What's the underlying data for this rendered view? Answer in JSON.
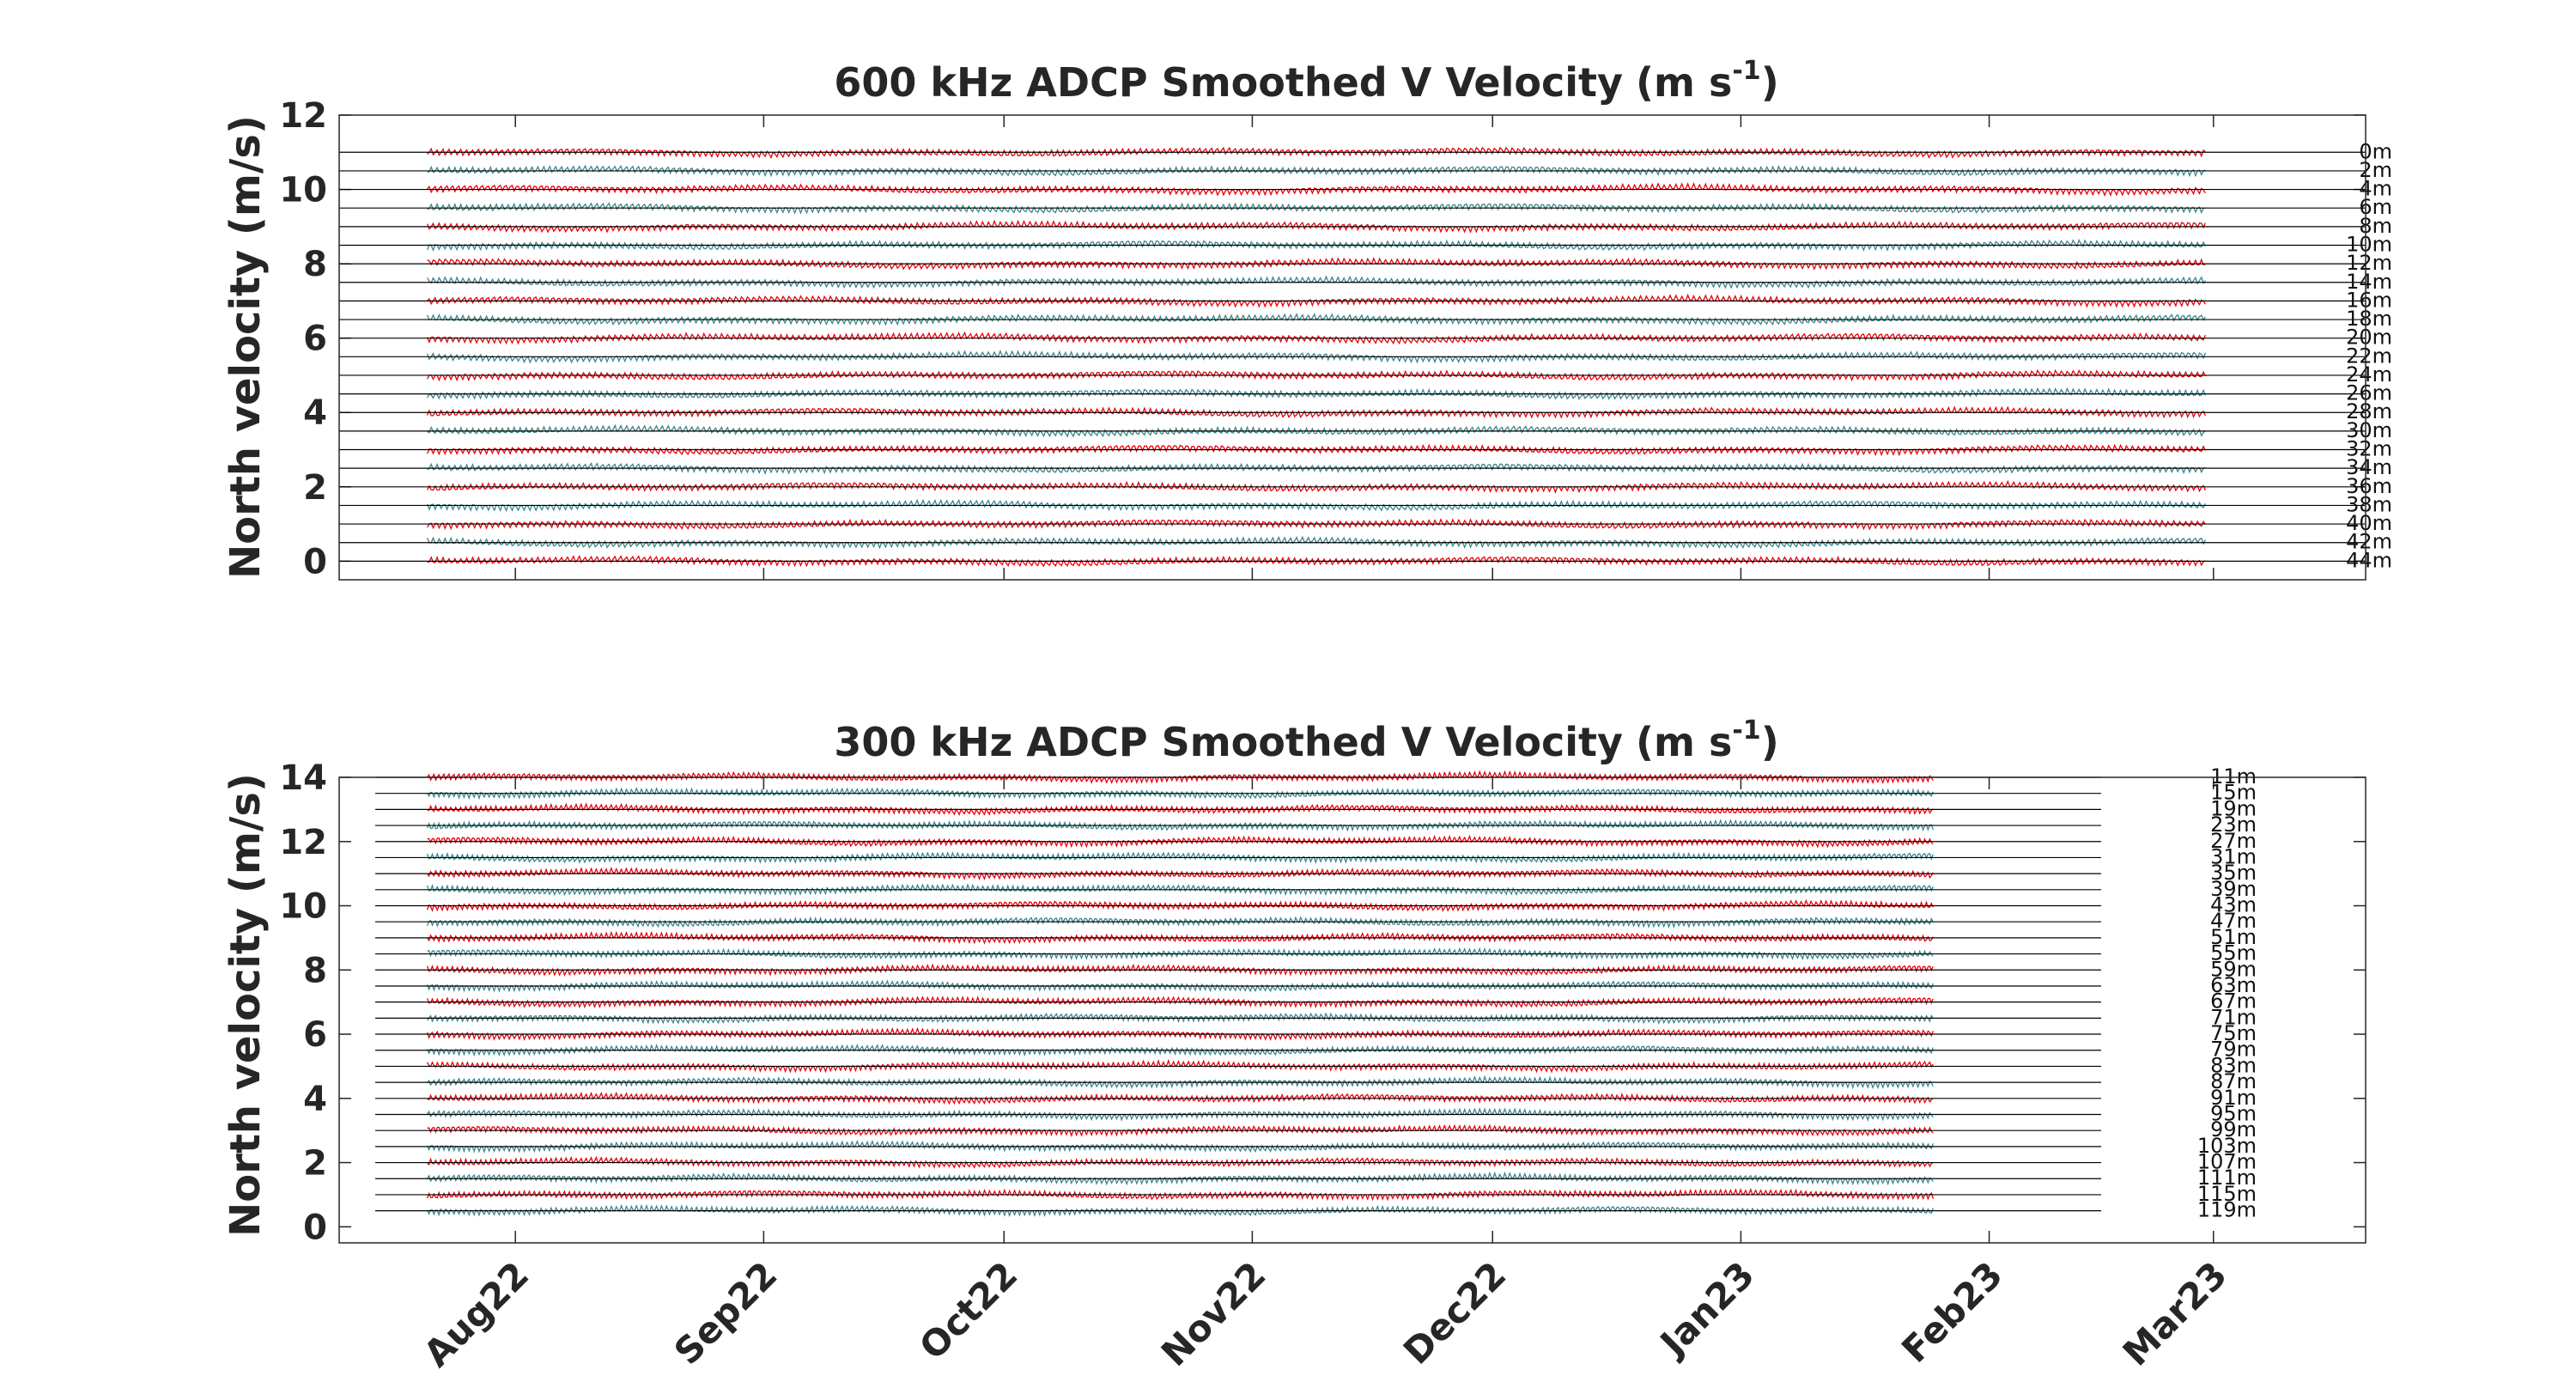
{
  "chart_data": [
    {
      "type": "line",
      "title": "600 kHz ADCP Smoothed V Velocity",
      "title_units": "(m s",
      "title_units_sup": "-1",
      "title_units_close": ")",
      "ylabel": "North velocity (m/s)",
      "ylim": [
        -0.5,
        12
      ],
      "yticks": [
        "0",
        "2",
        "4",
        "6",
        "8",
        "10",
        "12"
      ],
      "xlim": [
        "2022-07-10",
        "2023-03-20"
      ],
      "grid": false,
      "data_start": "2022-07-21",
      "data_end": "2023-02-28",
      "offset_step": 0.5,
      "series_colors": [
        "#e8000b",
        "#3b8686"
      ],
      "depth_labels": [
        "0m",
        "2m",
        "4m",
        "6m",
        "8m",
        "10m",
        "12m",
        "14m",
        "16m",
        "18m",
        "20m",
        "22m",
        "24m",
        "26m",
        "28m",
        "30m",
        "32m",
        "34m",
        "36m",
        "38m",
        "40m",
        "42m",
        "44m"
      ]
    },
    {
      "type": "line",
      "title": "300 kHz ADCP Smoothed V Velocity",
      "title_units": "(m s",
      "title_units_sup": "-1",
      "title_units_close": ")",
      "ylabel": "North velocity (m/s)",
      "ylim": [
        -0.5,
        14
      ],
      "yticks": [
        "0",
        "2",
        "4",
        "6",
        "8",
        "10",
        "12",
        "14"
      ],
      "xlim": [
        "2022-07-10",
        "2023-03-20"
      ],
      "xticks": [
        "Aug22",
        "Sep22",
        "Oct22",
        "Nov22",
        "Dec22",
        "Jan23",
        "Feb23",
        "Mar23"
      ],
      "xtick_dates": [
        "2022-08-01",
        "2022-09-01",
        "2022-10-01",
        "2022-11-01",
        "2022-12-01",
        "2023-01-01",
        "2023-02-01",
        "2023-03-01"
      ],
      "grid": false,
      "data_start": "2022-07-21",
      "data_end": "2023-01-25",
      "offset_step": 0.5,
      "series_colors": [
        "#e8000b",
        "#3b8686"
      ],
      "depth_labels": [
        "11m",
        "15m",
        "19m",
        "23m",
        "27m",
        "31m",
        "35m",
        "39m",
        "43m",
        "47m",
        "51m",
        "55m",
        "59m",
        "63m",
        "67m",
        "71m",
        "75m",
        "79m",
        "83m",
        "87m",
        "91m",
        "95m",
        "99m",
        "103m",
        "107m",
        "111m",
        "115m",
        "119m"
      ]
    }
  ]
}
